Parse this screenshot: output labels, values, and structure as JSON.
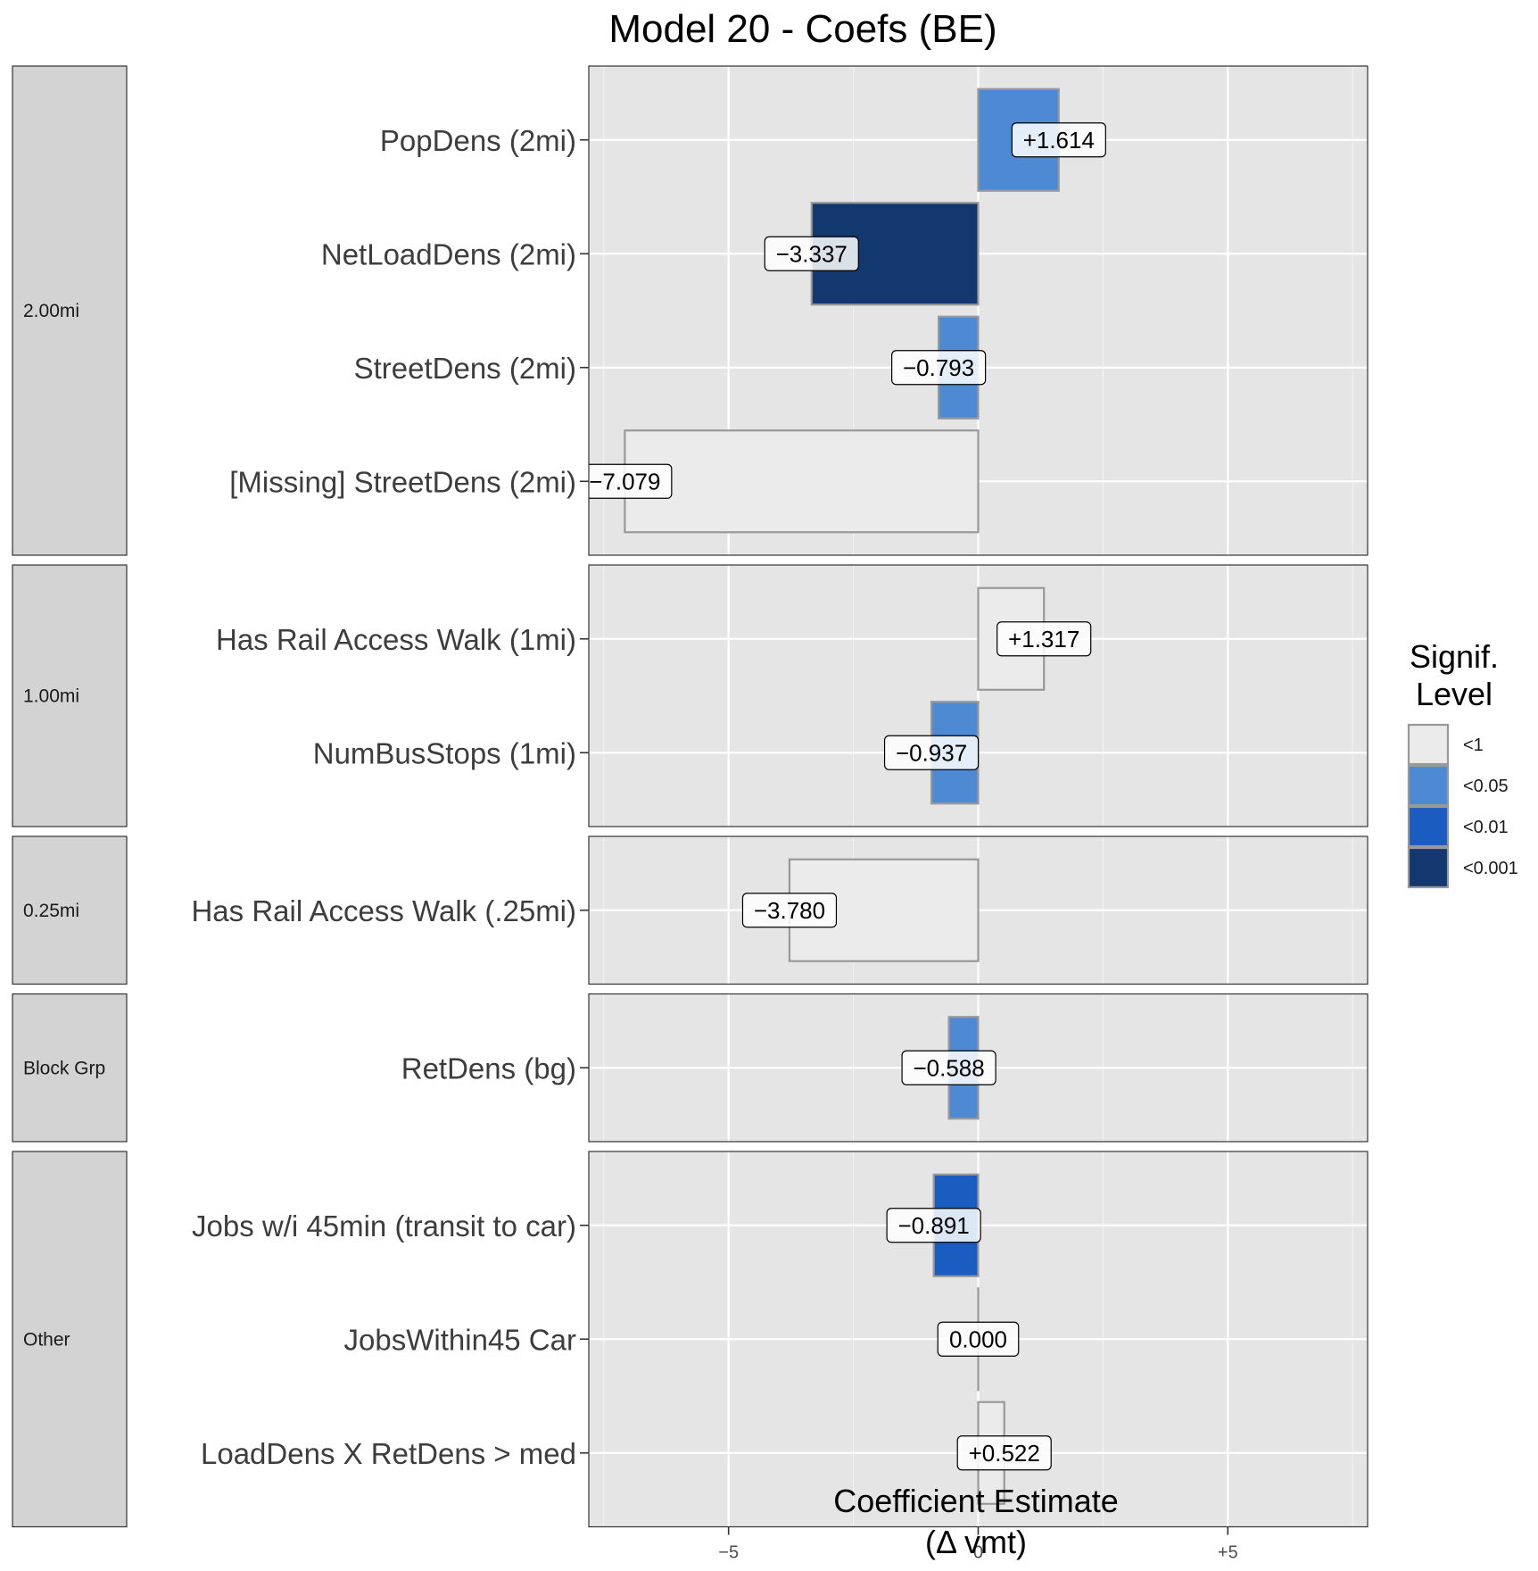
{
  "chart_data": {
    "type": "bar",
    "orientation": "horizontal",
    "title": "Model 20 - Coefs (BE)",
    "xlabel": "Coefficient Estimate",
    "xlabel_line2": "(Δ vmt)",
    "xlim": [
      -7.8,
      7.8
    ],
    "xticks": [
      {
        "value": -5,
        "label": "−5"
      },
      {
        "value": 0,
        "label": "0"
      },
      {
        "value": 5,
        "label": "+5"
      }
    ],
    "grid": true,
    "legend": {
      "title_line1": "Signif.",
      "title_line2": "Level",
      "placement": "right",
      "entries": [
        {
          "key": "lt1",
          "label": "<1",
          "color": "#ebebeb"
        },
        {
          "key": "lt05",
          "label": "<0.05",
          "color": "#4e8ad4"
        },
        {
          "key": "lt01",
          "label": "<0.01",
          "color": "#1a5cc0"
        },
        {
          "key": "lt001",
          "label": "<0.001",
          "color": "#12386f"
        }
      ]
    },
    "facets": [
      {
        "name": "2.00mi",
        "items": [
          {
            "label": "PopDens (2mi)",
            "value": 1.614,
            "value_label": "+1.614",
            "sig": "lt05"
          },
          {
            "label": "NetLoadDens (2mi)",
            "value": -3.337,
            "value_label": "−3.337",
            "sig": "lt001"
          },
          {
            "label": "StreetDens (2mi)",
            "value": -0.793,
            "value_label": "−0.793",
            "sig": "lt05"
          },
          {
            "label": "[Missing] StreetDens (2mi)",
            "value": -7.079,
            "value_label": "−7.079",
            "sig": "lt1"
          }
        ]
      },
      {
        "name": "1.00mi",
        "items": [
          {
            "label": "Has Rail Access Walk (1mi)",
            "value": 1.317,
            "value_label": "+1.317",
            "sig": "lt1"
          },
          {
            "label": "NumBusStops (1mi)",
            "value": -0.937,
            "value_label": "−0.937",
            "sig": "lt05"
          }
        ]
      },
      {
        "name": "0.25mi",
        "items": [
          {
            "label": "Has Rail Access Walk (.25mi)",
            "value": -3.78,
            "value_label": "−3.780",
            "sig": "lt1"
          }
        ]
      },
      {
        "name": "Block Grp",
        "items": [
          {
            "label": "RetDens (bg)",
            "value": -0.588,
            "value_label": "−0.588",
            "sig": "lt05"
          }
        ]
      },
      {
        "name": "Other",
        "items": [
          {
            "label": "Jobs w/i 45min (transit to car)",
            "value": -0.891,
            "value_label": "−0.891",
            "sig": "lt01"
          },
          {
            "label": "JobsWithin45 Car",
            "value": 0.0,
            "value_label": "0.000",
            "sig": "lt1"
          },
          {
            "label": "LoadDens X RetDens > med",
            "value": 0.522,
            "value_label": "+0.522",
            "sig": "lt1"
          }
        ]
      }
    ]
  }
}
